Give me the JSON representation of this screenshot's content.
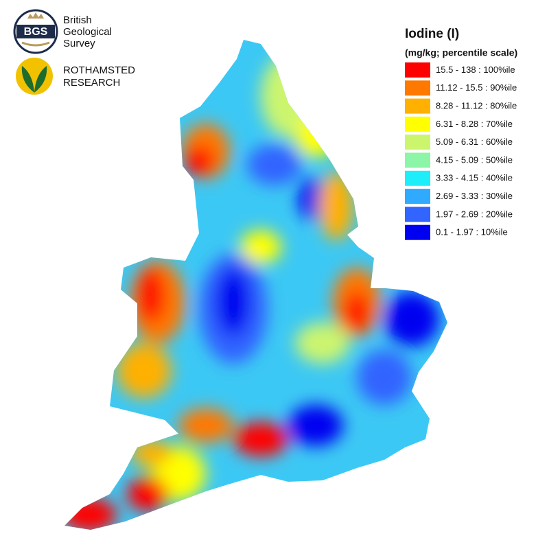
{
  "logos": [
    {
      "badge": "BGS",
      "lines": [
        "British",
        "Geological",
        "Survey"
      ]
    },
    {
      "lines": [
        "ROTHAMSTED",
        "RESEARCH"
      ]
    }
  ],
  "legend": {
    "title": "Iodine (I)",
    "subtitle": "(mg/kg; percentile scale)",
    "items": [
      {
        "label": "15.5 - 138 : 100%ile",
        "color": "#ff0000"
      },
      {
        "label": "11.12 - 15.5 : 90%ile",
        "color": "#ff7800"
      },
      {
        "label": "8.28 - 11.12 : 80%ile",
        "color": "#ffb000"
      },
      {
        "label": "6.31 - 8.28 : 70%ile",
        "color": "#ffff00"
      },
      {
        "label": "5.09 - 6.31 : 60%ile",
        "color": "#ccf56e"
      },
      {
        "label": "4.15 - 5.09 : 50%ile",
        "color": "#8cf5a8"
      },
      {
        "label": "3.33 - 4.15 : 40%ile",
        "color": "#1eeefa"
      },
      {
        "label": "2.69 - 3.33 : 30%ile",
        "color": "#30aaff"
      },
      {
        "label": "1.97 - 2.69 : 20%ile",
        "color": "#3264ff"
      },
      {
        "label": "0.1 - 1.97 : 10%ile",
        "color": "#0000f0"
      }
    ]
  }
}
